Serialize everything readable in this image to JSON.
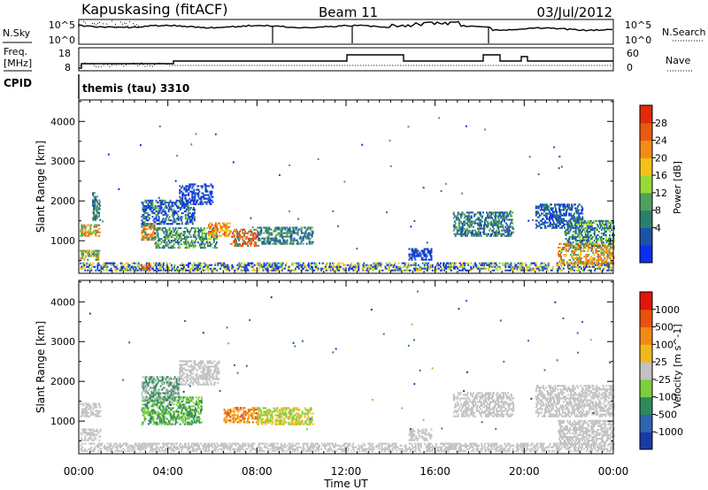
{
  "header": {
    "station": "Kapuskasing (fitACF)",
    "beam": "Beam 11",
    "date": "03/Jul/2012"
  },
  "summary_panels": {
    "nsky_label": "N.Sky",
    "nsky_ticks": [
      "10^5",
      "10^0"
    ],
    "nsearch_label": "N.Search",
    "nsearch_ticks": [
      "10^5",
      "10^0"
    ],
    "freq_label": "Freq.",
    "freq_unit": "[MHz]",
    "freq_ticks": [
      "18",
      "8"
    ],
    "nave_label": "Nave",
    "nave_ticks": [
      "60",
      "0"
    ],
    "cpid_label": "CPID",
    "cpid_value": "themis (tau) 3310"
  },
  "chart_data": [
    {
      "type": "heatmap",
      "name": "power-panel",
      "ylabel": "Slant Range [km]",
      "xlabel": "",
      "x_ticks": [
        "00:00",
        "04:00",
        "08:00",
        "12:00",
        "16:00",
        "20:00",
        "00:00"
      ],
      "xlim_hours": [
        0,
        24
      ],
      "y_ticks": [
        1000,
        2000,
        3000,
        4000
      ],
      "ylim_km": [
        180,
        4540
      ],
      "colorbar": {
        "label": "Power [dB]",
        "ticks": [
          "28",
          "24",
          "20",
          "16",
          "12",
          "8",
          "4"
        ],
        "colors": [
          "#0a2ff0",
          "#1b53a8",
          "#2a7f6f",
          "#4fa05a",
          "#9bd83a",
          "#f2c21b",
          "#f28c16",
          "#e85a10",
          "#e02a0a"
        ]
      },
      "scatter_regions": [
        {
          "t": [
            0.05,
            0.95
          ],
          "r": [
            1100,
            1400
          ],
          "c": [
            4,
            6,
            7,
            3
          ]
        },
        {
          "t": [
            0.05,
            0.95
          ],
          "r": [
            500,
            750
          ],
          "c": [
            4,
            6,
            2,
            3
          ]
        },
        {
          "t": [
            0.6,
            0.95
          ],
          "r": [
            1500,
            2200
          ],
          "c": [
            1,
            3
          ]
        },
        {
          "t": [
            2.8,
            3.4
          ],
          "r": [
            1000,
            1450
          ],
          "c": [
            5,
            6,
            7,
            2
          ]
        },
        {
          "t": [
            2.8,
            5.2
          ],
          "r": [
            1400,
            2000
          ],
          "c": [
            0,
            1,
            3
          ]
        },
        {
          "t": [
            3.4,
            6.2
          ],
          "r": [
            800,
            1300
          ],
          "c": [
            1,
            2,
            4,
            3
          ]
        },
        {
          "t": [
            4.5,
            6.0
          ],
          "r": [
            1900,
            2400
          ],
          "c": [
            0,
            1
          ]
        },
        {
          "t": [
            5.8,
            6.8
          ],
          "r": [
            1100,
            1450
          ],
          "c": [
            6,
            7,
            5
          ]
        },
        {
          "t": [
            6.8,
            8.0
          ],
          "r": [
            850,
            1300
          ],
          "c": [
            7,
            8,
            6,
            2
          ]
        },
        {
          "t": [
            8.0,
            10.5
          ],
          "r": [
            900,
            1350
          ],
          "c": [
            1,
            2,
            3
          ]
        },
        {
          "t": [
            0.05,
            24
          ],
          "r": [
            230,
            450
          ],
          "c": [
            0,
            1,
            4,
            5
          ]
        },
        {
          "t": [
            2.8,
            3.2
          ],
          "r": [
            230,
            380
          ],
          "c": [
            8,
            7
          ]
        },
        {
          "t": [
            14.8,
            15.8
          ],
          "r": [
            500,
            800
          ],
          "c": [
            1,
            0
          ]
        },
        {
          "t": [
            16.8,
            19.5
          ],
          "r": [
            1100,
            1700
          ],
          "c": [
            1,
            3
          ]
        },
        {
          "t": [
            20.5,
            22.6
          ],
          "r": [
            1300,
            1900
          ],
          "c": [
            1,
            2,
            0
          ]
        },
        {
          "t": [
            21.8,
            24
          ],
          "r": [
            800,
            1500
          ],
          "c": [
            1,
            2,
            4
          ]
        },
        {
          "t": [
            21.5,
            24
          ],
          "r": [
            400,
            900
          ],
          "c": [
            6,
            7,
            5,
            3
          ]
        }
      ]
    },
    {
      "type": "heatmap",
      "name": "velocity-panel",
      "ylabel": "Slant Range [km]",
      "xlabel": "Time UT",
      "x_ticks": [
        "00:00",
        "04:00",
        "08:00",
        "12:00",
        "16:00",
        "20:00",
        "00:00"
      ],
      "xlim_hours": [
        0,
        24
      ],
      "y_ticks": [
        1000,
        2000,
        3000,
        4000
      ],
      "ylim_km": [
        180,
        4540
      ],
      "colorbar": {
        "label": "Velocity [m s^-1]",
        "ticks": [
          "1000",
          "500",
          "100",
          "25",
          "-25",
          "-100",
          "-500",
          "-1000"
        ],
        "colors": [
          "#1a3aa8",
          "#2e64b0",
          "#2e8a5a",
          "#7ccf3a",
          "#c2c2c2",
          "#f2b91a",
          "#f28a16",
          "#e8520e",
          "#e0160a"
        ]
      },
      "scatter_regions": [
        {
          "t": [
            0.05,
            0.95
          ],
          "r": [
            1100,
            1450
          ],
          "c": [
            4
          ]
        },
        {
          "t": [
            0.05,
            0.95
          ],
          "r": [
            500,
            800
          ],
          "c": [
            4
          ]
        },
        {
          "t": [
            2.8,
            5.5
          ],
          "r": [
            900,
            1600
          ],
          "c": [
            2,
            3
          ]
        },
        {
          "t": [
            2.8,
            4.5
          ],
          "r": [
            1500,
            2100
          ],
          "c": [
            4,
            2
          ]
        },
        {
          "t": [
            4.5,
            6.3
          ],
          "r": [
            1900,
            2500
          ],
          "c": [
            4
          ]
        },
        {
          "t": [
            6.5,
            8.0
          ],
          "r": [
            950,
            1350
          ],
          "c": [
            5,
            6,
            7
          ]
        },
        {
          "t": [
            8.0,
            10.5
          ],
          "r": [
            900,
            1350
          ],
          "c": [
            5,
            3
          ]
        },
        {
          "t": [
            0.05,
            24
          ],
          "r": [
            230,
            450
          ],
          "c": [
            4
          ]
        },
        {
          "t": [
            14.8,
            15.8
          ],
          "r": [
            500,
            800
          ],
          "c": [
            4
          ]
        },
        {
          "t": [
            16.8,
            19.5
          ],
          "r": [
            1100,
            1700
          ],
          "c": [
            4
          ]
        },
        {
          "t": [
            20.5,
            24
          ],
          "r": [
            1100,
            1900
          ],
          "c": [
            4
          ]
        },
        {
          "t": [
            21.5,
            24
          ],
          "r": [
            400,
            1000
          ],
          "c": [
            4
          ]
        }
      ]
    }
  ]
}
